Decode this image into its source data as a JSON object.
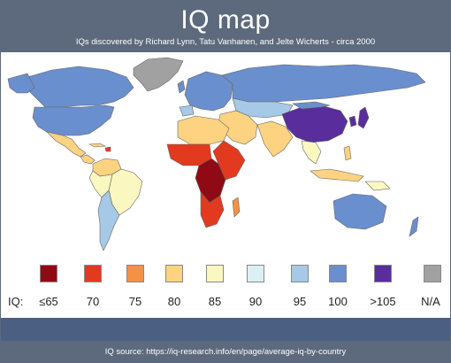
{
  "title": "IQ map",
  "subtitle": "IQs discovered by Richard Lynn, Tatu Vanhanen, and Jelte Wicherts - circa 2000",
  "legend": {
    "label": "IQ:",
    "items": [
      {
        "label": "≤65",
        "color": "#8f0a15"
      },
      {
        "label": "70",
        "color": "#e23a1f"
      },
      {
        "label": "75",
        "color": "#f59145"
      },
      {
        "label": "80",
        "color": "#fdd281"
      },
      {
        "label": "85",
        "color": "#fbf7c0"
      },
      {
        "label": "90",
        "color": "#dcf0f4"
      },
      {
        "label": "95",
        "color": "#a5c9e6"
      },
      {
        "label": "100",
        "color": "#6a8fce"
      },
      {
        "label": ">105",
        "color": "#5a2d9c"
      },
      {
        "label": "N/A",
        "color": "#a1a1a1"
      }
    ]
  },
  "source": "IQ source:  https://iq-research.info/en/page/average-iq-by-country",
  "colors": {
    "background": "#5d6a7d",
    "bottom_bar": "#4a5f82",
    "ocean": "#ffffff"
  }
}
